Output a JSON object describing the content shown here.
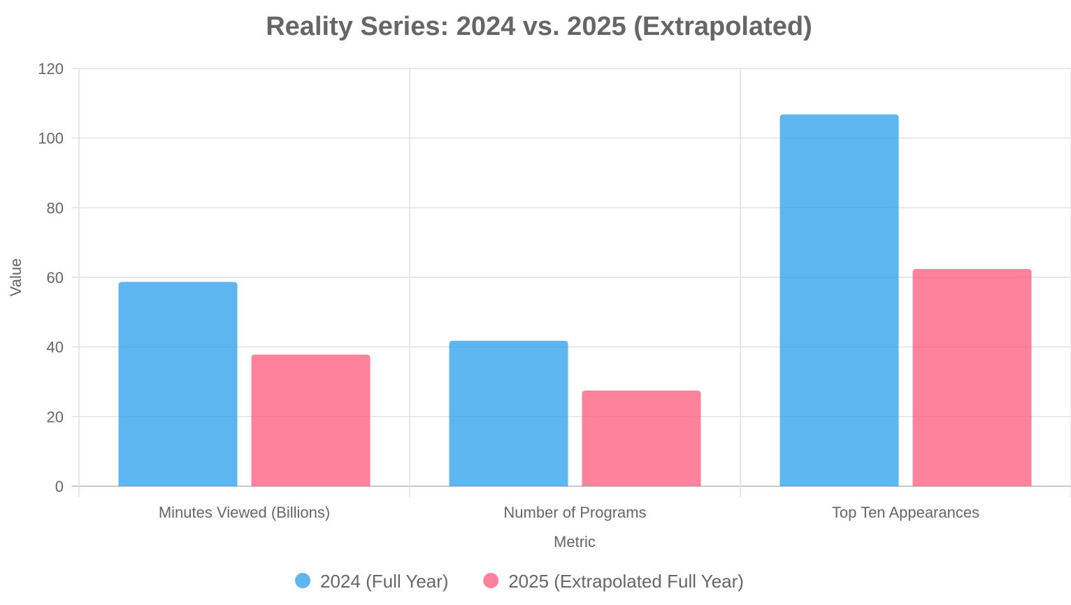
{
  "chart_data": {
    "type": "bar",
    "title": "Reality Series: 2024 vs. 2025 (Extrapolated)",
    "xlabel": "Metric",
    "ylabel": "Value",
    "categories": [
      "Minutes Viewed (Billions)",
      "Number of Programs",
      "Top Ten Appearances"
    ],
    "series": [
      {
        "name": "2024 (Full Year)",
        "values": [
          58.7,
          41.8,
          106.8
        ],
        "color": "#36a2eb"
      },
      {
        "name": "2025 (Extrapolated Full Year)",
        "values": [
          37.8,
          27.5,
          62.4
        ],
        "color": "#ff6384"
      }
    ],
    "ylim": [
      0,
      120
    ],
    "yticks": [
      0,
      20,
      40,
      60,
      80,
      100,
      120
    ],
    "grid": true,
    "legend_position": "bottom"
  }
}
